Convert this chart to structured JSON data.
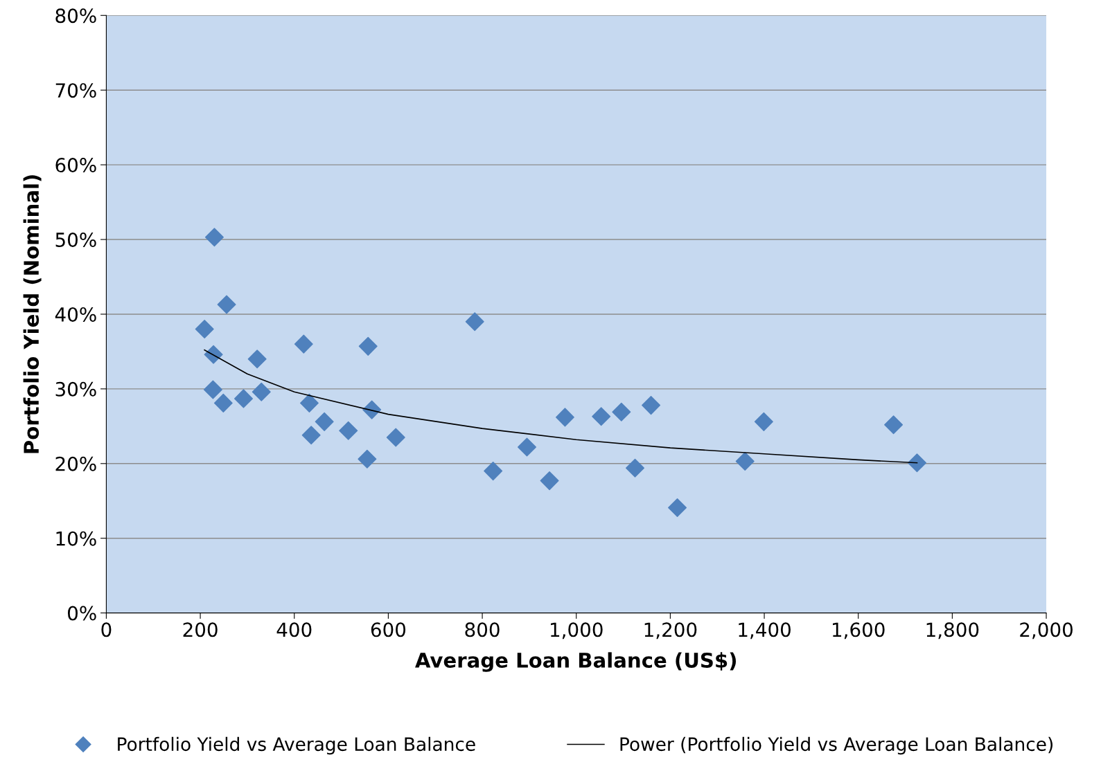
{
  "chart_data": {
    "type": "scatter",
    "xlabel": "Average Loan Balance (US$)",
    "ylabel": "Portfolio Yield (Nominal)",
    "xlim": [
      0,
      2000
    ],
    "ylim": [
      0,
      80
    ],
    "xticks": [
      0,
      200,
      400,
      600,
      800,
      {
        "value": 1000,
        "label": "1,000"
      },
      {
        "value": 1200,
        "label": "1,200"
      },
      {
        "value": 1400,
        "label": "1,400"
      },
      {
        "value": 1600,
        "label": "1,600"
      },
      {
        "value": 1800,
        "label": "1,800"
      },
      {
        "value": 2000,
        "label": "2,000"
      }
    ],
    "yticks": [
      {
        "value": 0,
        "label": "0%"
      },
      {
        "value": 10,
        "label": "10%"
      },
      {
        "value": 20,
        "label": "20%"
      },
      {
        "value": 30,
        "label": "30%"
      },
      {
        "value": 40,
        "label": "40%"
      },
      {
        "value": 50,
        "label": "50%"
      },
      {
        "value": 60,
        "label": "60%"
      },
      {
        "value": 70,
        "label": "70%"
      },
      {
        "value": 80,
        "label": "80%"
      }
    ],
    "grid": "y",
    "legend": "bottom",
    "series": [
      {
        "name": "Portfolio Yield vs Average Loan Balance",
        "marker": "diamond",
        "color": "#4f81bd",
        "x": [
          209,
          230,
          256,
          228,
          227,
          249,
          292,
          321,
          330,
          420,
          432,
          436,
          464,
          515,
          557,
          565,
          555,
          616,
          784,
          823,
          895,
          943,
          976,
          1053,
          1096,
          1125,
          1159,
          1215,
          1359,
          1399,
          1675,
          1725
        ],
        "values": [
          38.0,
          50.3,
          41.3,
          34.6,
          29.9,
          28.1,
          28.7,
          34.0,
          29.6,
          36.0,
          28.1,
          23.8,
          25.6,
          24.4,
          35.7,
          27.2,
          20.6,
          23.5,
          39.0,
          19.0,
          22.2,
          17.7,
          26.2,
          26.3,
          26.9,
          19.4,
          27.8,
          14.1,
          20.3,
          25.6,
          25.2,
          20.1
        ]
      },
      {
        "name": "Power (Portfolio Yield vs Average Loan Balance)",
        "type": "line",
        "marker": "none",
        "line_style": "solid",
        "color": "#000000",
        "x": [
          209,
          300,
          400,
          600,
          800,
          1000,
          1200,
          1400,
          1600,
          1725
        ],
        "values": [
          35.2,
          32.0,
          29.6,
          26.6,
          24.7,
          23.2,
          22.1,
          21.3,
          20.5,
          20.1
        ]
      }
    ]
  }
}
